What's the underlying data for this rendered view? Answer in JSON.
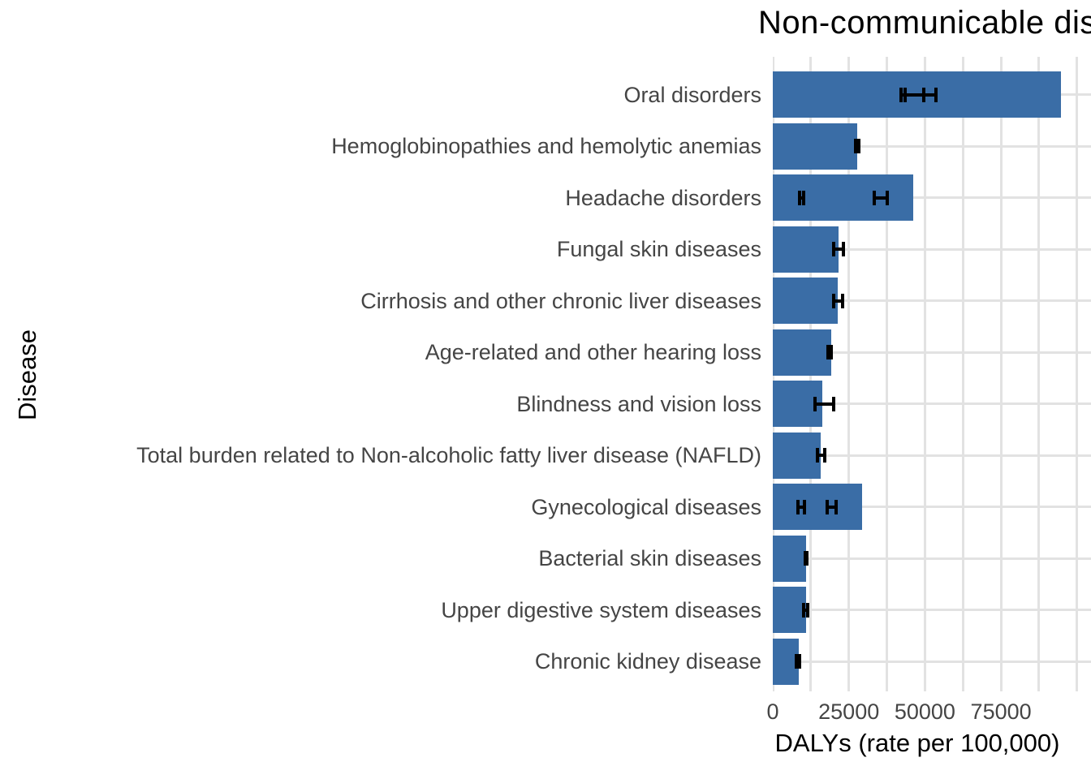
{
  "chart_data": {
    "type": "bar",
    "orientation": "horizontal",
    "title": "Non-communicable diseases",
    "xlabel": "DALYs (rate per 100,000)",
    "ylabel": "Disease",
    "categories": [
      "Oral disorders",
      "Hemoglobinopathies and hemolytic anemias",
      "Headache disorders",
      "Fungal skin diseases",
      "Cirrhosis and other chronic liver diseases",
      "Age-related and other hearing loss",
      "Blindness and vision loss",
      "Total burden related to Non-alcoholic fatty liver disease (NAFLD)",
      "Gynecological diseases",
      "Bacterial skin diseases",
      "Upper digestive system diseases",
      "Chronic kidney disease"
    ],
    "values": [
      94700,
      27700,
      46100,
      21600,
      21300,
      19200,
      16400,
      15700,
      29300,
      10900,
      11000,
      8500
    ],
    "error_bars": [
      [
        [
          41600,
          50100
        ],
        [
          42900,
          54200
        ]
      ],
      [
        [
          26600,
          28800
        ]
      ],
      [
        [
          8300,
          10700
        ],
        [
          32800,
          38200
        ]
      ],
      [
        [
          19500,
          23700
        ]
      ],
      [
        [
          19600,
          23400
        ]
      ],
      [
        [
          17600,
          19700
        ]
      ],
      [
        [
          13300,
          20600
        ]
      ],
      [
        [
          14100,
          17600
        ]
      ],
      [
        [
          7700,
          10900
        ],
        [
          17300,
          21300
        ]
      ],
      [
        [
          10100,
          11700
        ]
      ],
      [
        [
          9700,
          11900
        ]
      ],
      [
        [
          7200,
          9400
        ]
      ]
    ],
    "x_ticks": [
      0,
      25000,
      50000,
      75000
    ],
    "x_tick_labels": [
      "0",
      "25000",
      "50000",
      "75000"
    ],
    "xlim": [
      0,
      110000
    ],
    "grid": true,
    "grid_step_minor": 12500,
    "legend": "none",
    "bar_color": "#3A6DA6",
    "errorbar_color": "#000000",
    "grid_color": "#E2E2E2"
  }
}
